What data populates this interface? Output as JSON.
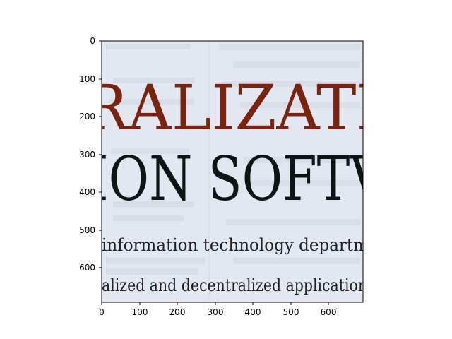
{
  "axes": {
    "x_ticks": [
      "0",
      "100",
      "200",
      "300",
      "400",
      "500",
      "600"
    ],
    "y_ticks": [
      "0",
      "100",
      "200",
      "300",
      "400",
      "500",
      "600"
    ]
  },
  "image": {
    "line_1": "RALIZATI",
    "line_2": "ION SOFTV",
    "line_3": "information  technology  departm",
    "line_4": "alized and decentralized application",
    "colors": {
      "paper": "#e3e7f1",
      "red_text": "#7a2410",
      "black_text": "#0e1514",
      "ghost_text": "#b9bfcc"
    }
  }
}
